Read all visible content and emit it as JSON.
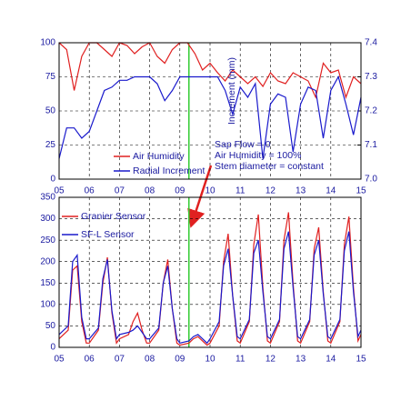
{
  "chart_data": [
    {
      "type": "line",
      "y2_label": "Increment (mm)",
      "annotations": [
        "Sap Flow = 0",
        "Air Humidity = 100%",
        "Stem diameter = constant"
      ],
      "x": [
        5.0,
        5.25,
        5.5,
        5.75,
        6.0,
        6.25,
        6.5,
        6.75,
        7.0,
        7.25,
        7.5,
        7.75,
        8.0,
        8.25,
        8.5,
        8.75,
        9.0,
        9.25,
        9.5,
        9.75,
        10.0,
        10.25,
        10.5,
        10.75,
        11.0,
        11.25,
        11.5,
        11.75,
        12.0,
        12.25,
        12.5,
        12.75,
        13.0,
        13.25,
        13.5,
        13.75,
        14.0,
        14.25,
        14.5,
        14.75,
        15.0
      ],
      "series": [
        {
          "name": "Air Humidity",
          "color": "#e02020",
          "axis": "y",
          "values": [
            100,
            95,
            65,
            90,
            100,
            100,
            95,
            90,
            100,
            98,
            92,
            97,
            100,
            90,
            85,
            95,
            100,
            100,
            92,
            80,
            85,
            78,
            72,
            80,
            75,
            70,
            75,
            68,
            78,
            72,
            70,
            78,
            75,
            72,
            60,
            85,
            78,
            80,
            60,
            75,
            70
          ]
        },
        {
          "name": "Radial Increment",
          "color": "#1a1acc",
          "axis": "y2",
          "values": [
            7.06,
            7.15,
            7.15,
            7.12,
            7.14,
            7.2,
            7.26,
            7.27,
            7.29,
            7.29,
            7.3,
            7.3,
            7.3,
            7.28,
            7.23,
            7.26,
            7.3,
            7.3,
            7.3,
            7.3,
            7.3,
            7.3,
            7.26,
            7.19,
            7.27,
            7.24,
            7.28,
            7.06,
            7.22,
            7.25,
            7.24,
            7.08,
            7.22,
            7.27,
            7.26,
            7.12,
            7.26,
            7.3,
            7.22,
            7.13,
            7.24
          ]
        }
      ],
      "xlim": [
        5,
        15
      ],
      "xticks": [
        {
          "value": 5,
          "label": "05"
        },
        {
          "value": 6,
          "label": "06"
        },
        {
          "value": 7,
          "label": "07"
        },
        {
          "value": 8,
          "label": "08"
        },
        {
          "value": 9,
          "label": "09"
        },
        10,
        11,
        12,
        13,
        14,
        15
      ],
      "ylim": [
        0,
        100
      ],
      "yticks": [
        0,
        25,
        50,
        75,
        100
      ],
      "y2lim": [
        7.0,
        7.4
      ],
      "y2ticks": [
        {
          "value": 7.0,
          "label": "7.0"
        },
        7.1,
        7.2,
        7.3,
        7.4
      ],
      "grid": true,
      "vline": {
        "x": 9.3,
        "color": "#33cc33"
      }
    },
    {
      "type": "line",
      "x": [
        5.0,
        5.3,
        5.45,
        5.6,
        5.75,
        5.9,
        6.0,
        6.3,
        6.45,
        6.6,
        6.75,
        6.9,
        7.0,
        7.3,
        7.45,
        7.6,
        7.75,
        7.9,
        8.0,
        8.3,
        8.45,
        8.6,
        8.75,
        8.9,
        9.0,
        9.3,
        9.45,
        9.6,
        9.75,
        9.9,
        10.0,
        10.3,
        10.45,
        10.6,
        10.75,
        10.9,
        11.0,
        11.3,
        11.45,
        11.6,
        11.75,
        11.9,
        12.0,
        12.3,
        12.45,
        12.6,
        12.75,
        12.9,
        13.0,
        13.3,
        13.45,
        13.6,
        13.75,
        13.9,
        14.0,
        14.3,
        14.45,
        14.6,
        14.75,
        14.9,
        15.0
      ],
      "series": [
        {
          "name": "Granier Sensor",
          "color": "#e02020",
          "values": [
            20,
            40,
            180,
            190,
            60,
            10,
            10,
            40,
            150,
            210,
            80,
            10,
            20,
            30,
            60,
            80,
            40,
            10,
            10,
            40,
            150,
            205,
            90,
            10,
            5,
            10,
            20,
            25,
            15,
            5,
            10,
            50,
            200,
            265,
            120,
            15,
            10,
            60,
            240,
            310,
            140,
            15,
            10,
            60,
            250,
            315,
            150,
            15,
            10,
            60,
            230,
            280,
            130,
            15,
            10,
            60,
            240,
            305,
            140,
            15,
            30
          ]
        },
        {
          "name": "SF-L Sensor",
          "color": "#1a1acc",
          "values": [
            30,
            50,
            200,
            215,
            70,
            20,
            20,
            45,
            160,
            205,
            85,
            20,
            30,
            35,
            40,
            50,
            35,
            20,
            20,
            45,
            150,
            190,
            90,
            20,
            10,
            15,
            25,
            30,
            20,
            10,
            20,
            60,
            190,
            230,
            120,
            25,
            20,
            65,
            220,
            250,
            130,
            25,
            20,
            65,
            230,
            270,
            140,
            25,
            20,
            65,
            215,
            250,
            125,
            25,
            20,
            65,
            225,
            270,
            130,
            25,
            40
          ]
        }
      ],
      "xlim": [
        5,
        15
      ],
      "xticks": [
        {
          "value": 5,
          "label": "05"
        },
        {
          "value": 6,
          "label": "06"
        },
        {
          "value": 7,
          "label": "07"
        },
        {
          "value": 8,
          "label": "08"
        },
        {
          "value": 9,
          "label": "09"
        },
        10,
        11,
        12,
        13,
        14,
        15
      ],
      "ylim": [
        0,
        350
      ],
      "yticks": [
        0,
        50,
        100,
        150,
        200,
        250,
        300,
        350
      ],
      "grid": true,
      "vline": {
        "x": 9.3,
        "color": "#33cc33"
      }
    }
  ]
}
